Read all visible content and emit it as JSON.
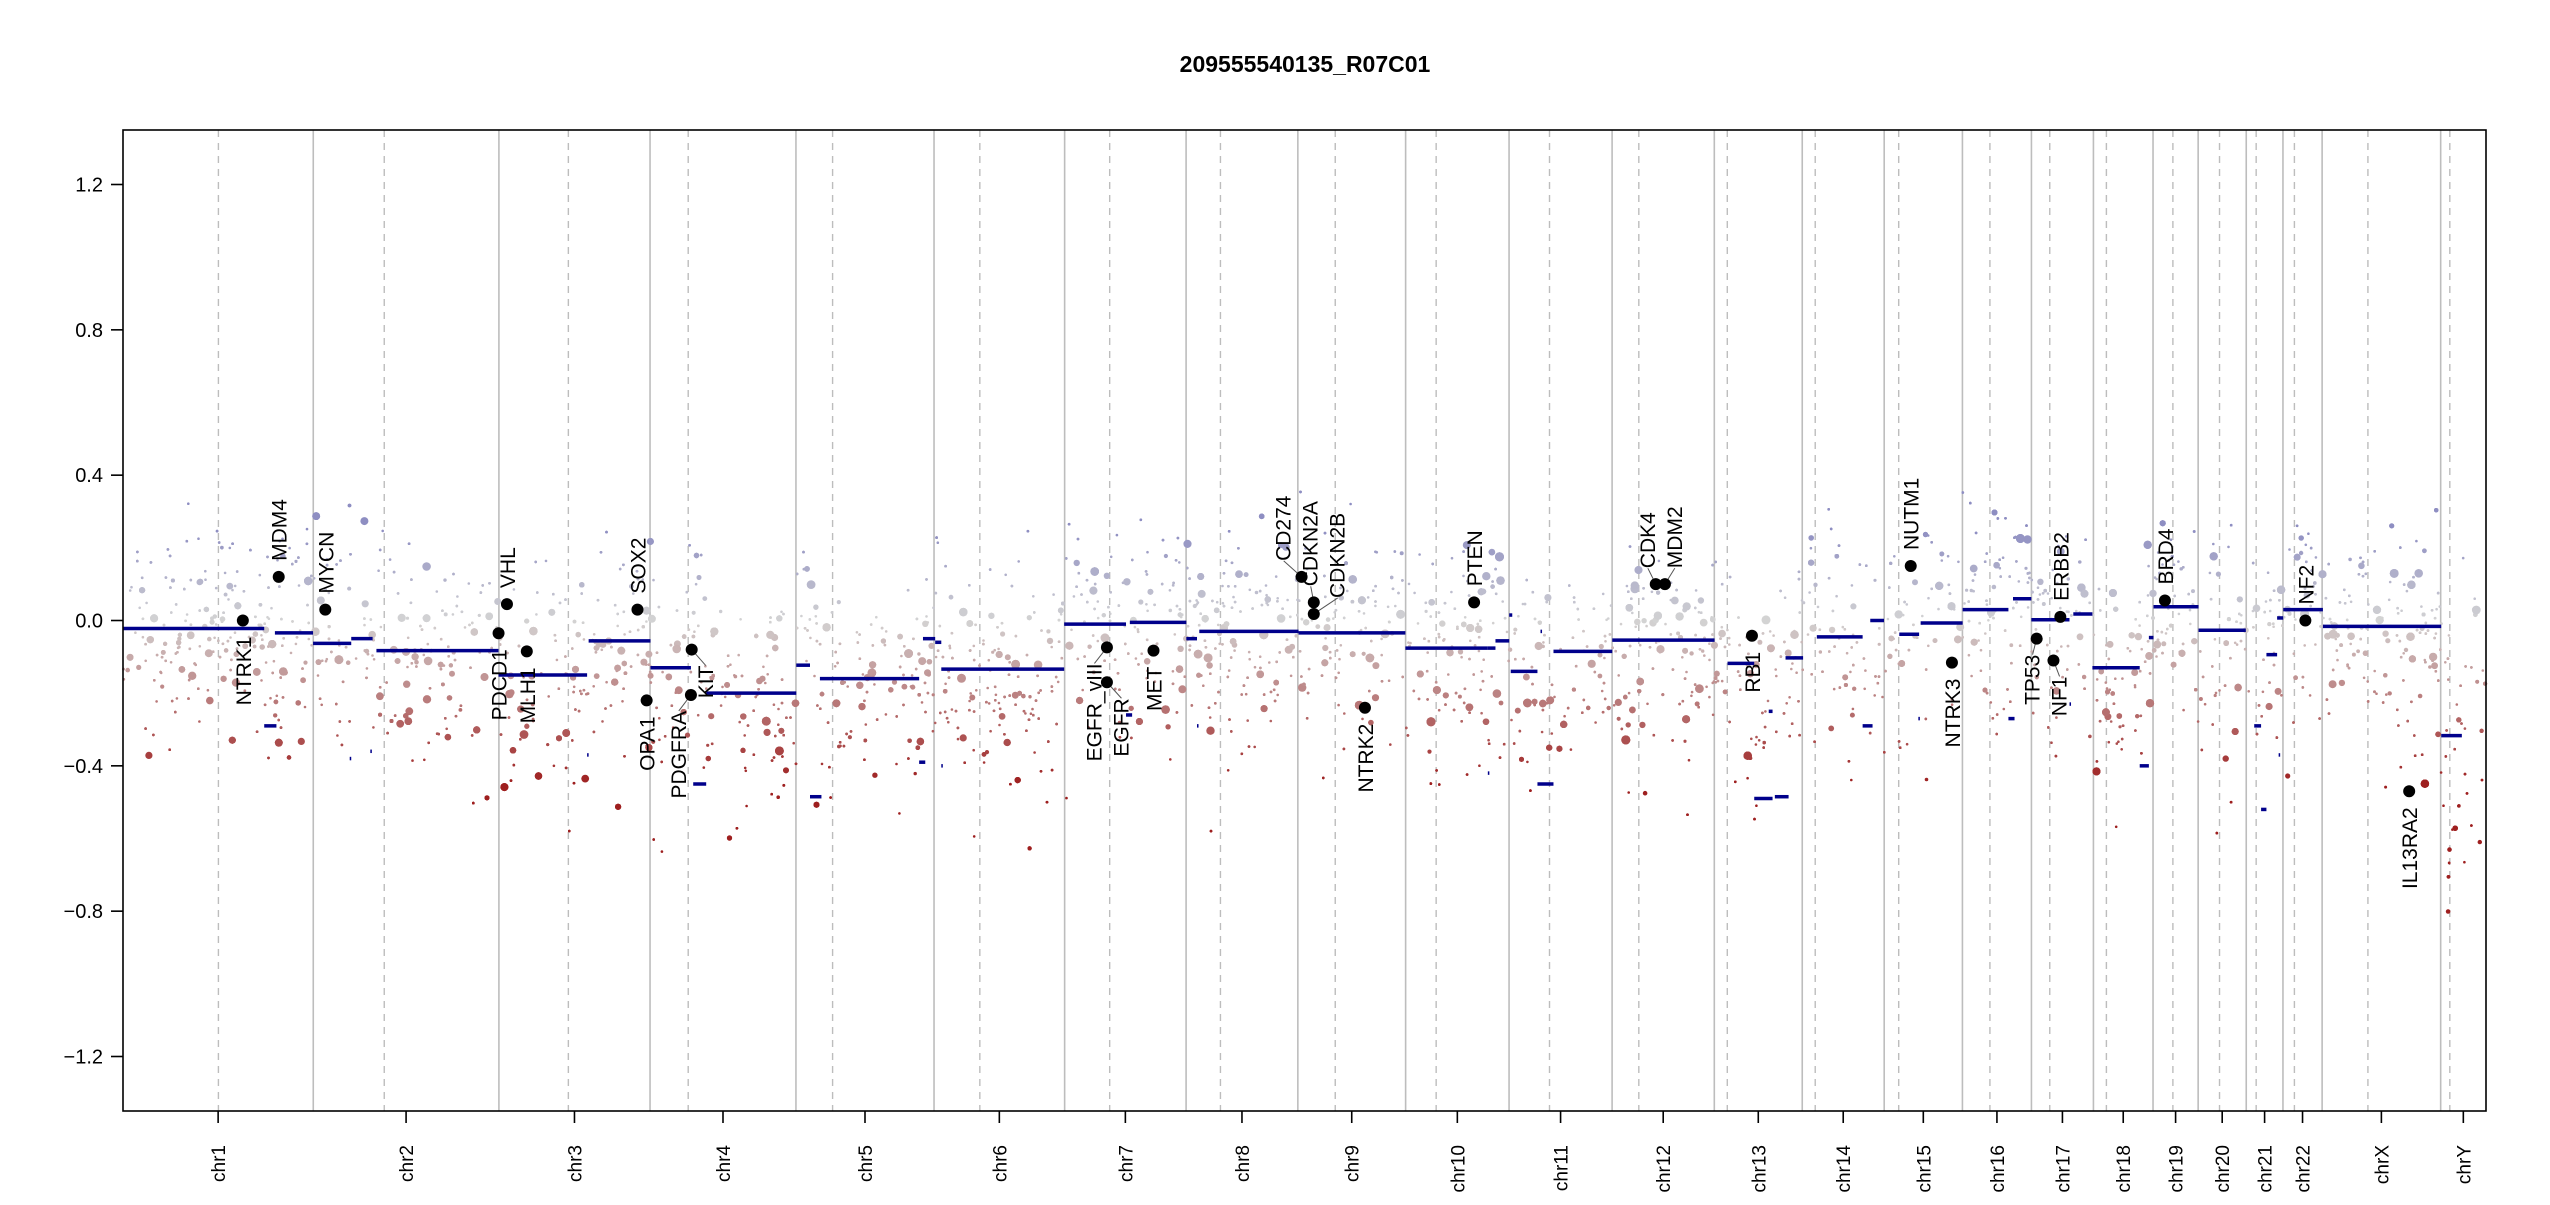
{
  "chart_data": {
    "type": "scatter",
    "title": "209555540135_R07C01",
    "xlabel": "",
    "ylabel": "",
    "ylim": [
      -1.35,
      1.35
    ],
    "yticks": [
      -1.2,
      -0.8,
      -0.4,
      0.0,
      0.4,
      0.8,
      1.2
    ],
    "ytick_labels": [
      "−1.2",
      "−0.8",
      "−0.4",
      "0.0",
      "0.4",
      "0.8",
      "1.2"
    ],
    "grid": false,
    "x_units": "Mb (cumulative genome position)",
    "chromosomes": [
      {
        "name": "chr1",
        "length": 249.25,
        "centromere": 125
      },
      {
        "name": "chr2",
        "length": 243.2,
        "centromere": 93
      },
      {
        "name": "chr3",
        "length": 198.0,
        "centromere": 91
      },
      {
        "name": "chr4",
        "length": 191.15,
        "centromere": 50
      },
      {
        "name": "chr5",
        "length": 180.9,
        "centromere": 48
      },
      {
        "name": "chr6",
        "length": 171.1,
        "centromere": 60
      },
      {
        "name": "chr7",
        "length": 159.1,
        "centromere": 59
      },
      {
        "name": "chr8",
        "length": 146.4,
        "centromere": 45
      },
      {
        "name": "chr9",
        "length": 141.2,
        "centromere": 49
      },
      {
        "name": "chr10",
        "length": 135.5,
        "centromere": 40
      },
      {
        "name": "chr11",
        "length": 135.0,
        "centromere": 53
      },
      {
        "name": "chr12",
        "length": 133.9,
        "centromere": 35
      },
      {
        "name": "chr13",
        "length": 115.2,
        "centromere": 17
      },
      {
        "name": "chr14",
        "length": 107.35,
        "centromere": 17
      },
      {
        "name": "chr15",
        "length": 102.5,
        "centromere": 19
      },
      {
        "name": "chr16",
        "length": 90.4,
        "centromere": 36
      },
      {
        "name": "chr17",
        "length": 81.2,
        "centromere": 24
      },
      {
        "name": "chr18",
        "length": 78.1,
        "centromere": 17
      },
      {
        "name": "chr19",
        "length": 59.1,
        "centromere": 26
      },
      {
        "name": "chr20",
        "length": 63.0,
        "centromere": 28
      },
      {
        "name": "chr21",
        "length": 48.1,
        "centromere": 13
      },
      {
        "name": "chr22",
        "length": 51.3,
        "centromere": 15
      },
      {
        "name": "chrX",
        "length": 155.3,
        "centromere": 60
      },
      {
        "name": "chrY",
        "length": 59.4,
        "centromere": 12
      }
    ],
    "segments": [
      [
        0,
        185,
        -0.022
      ],
      [
        185,
        201,
        -0.29
      ],
      [
        199,
        249,
        -0.034
      ],
      [
        249,
        299,
        -0.063
      ],
      [
        299,
        327,
        -0.05
      ],
      [
        297,
        299,
        -0.38
      ],
      [
        324,
        326,
        -0.36
      ],
      [
        332,
        492,
        -0.083
      ],
      [
        492,
        608,
        -0.15
      ],
      [
        608,
        610,
        -0.37
      ],
      [
        610,
        691,
        -0.056
      ],
      [
        691,
        744,
        -0.13
      ],
      [
        747,
        764,
        -0.45
      ],
      [
        764,
        882,
        -0.2
      ],
      [
        882,
        900,
        -0.123
      ],
      [
        900,
        915,
        -0.485
      ],
      [
        913,
        1043,
        -0.16
      ],
      [
        1043,
        1051,
        -0.39
      ],
      [
        1048,
        1064,
        -0.05
      ],
      [
        1064,
        1072,
        -0.06
      ],
      [
        1072,
        1074,
        -0.4
      ],
      [
        1072,
        1233,
        -0.134
      ],
      [
        1233,
        1314,
        -0.01
      ],
      [
        1314,
        1322,
        -0.26
      ],
      [
        1319,
        1393,
        -0.005
      ],
      [
        1393,
        1407,
        -0.05
      ],
      [
        1407,
        1409,
        -0.29
      ],
      [
        1410,
        1540,
        -0.03
      ],
      [
        1540,
        1680,
        -0.034
      ],
      [
        1680,
        1788,
        -0.076
      ],
      [
        1788,
        1798,
        -0.076
      ],
      [
        1788,
        1790,
        -0.42
      ],
      [
        1798,
        1816,
        -0.056
      ],
      [
        1816,
        1820,
        0.015
      ],
      [
        1818,
        1853,
        -0.14
      ],
      [
        1857,
        1859,
        -0.03
      ],
      [
        1853,
        1874,
        -0.45
      ],
      [
        1874,
        1951,
        -0.085
      ],
      [
        1951,
        2085,
        -0.054
      ],
      [
        2102,
        2137,
        -0.118
      ],
      [
        2137,
        2161,
        -0.49
      ],
      [
        2156,
        2161,
        -0.25
      ],
      [
        2164,
        2182,
        -0.485
      ],
      [
        2178,
        2201,
        -0.103
      ],
      [
        2219,
        2279,
        -0.045
      ],
      [
        2279,
        2292,
        -0.29
      ],
      [
        2289,
        2307,
        0.0
      ],
      [
        2327,
        2353,
        -0.038
      ],
      [
        2352,
        2354,
        -0.27
      ],
      [
        2355,
        2410,
        -0.007
      ],
      [
        2410,
        2470,
        0.03
      ],
      [
        2470,
        2478,
        -0.27
      ],
      [
        2476,
        2500,
        0.06
      ],
      [
        2500,
        2550,
        0.002
      ],
      [
        2550,
        2552,
        -0.23
      ],
      [
        2555,
        2580,
        0.018
      ],
      [
        2580,
        2642,
        -0.13
      ],
      [
        2642,
        2654,
        -0.4
      ],
      [
        2654,
        2660,
        -0.047
      ],
      [
        2660,
        2719,
        0.038
      ],
      [
        2719,
        2781,
        -0.027
      ],
      [
        2792,
        2801,
        -0.29
      ],
      [
        2801,
        2808,
        -0.52
      ],
      [
        2808,
        2822,
        -0.094
      ],
      [
        2824,
        2826,
        -0.37
      ],
      [
        2822,
        2830,
        0.007
      ],
      [
        2830,
        2882,
        0.03
      ],
      [
        2882,
        3037,
        -0.016
      ],
      [
        3037,
        3064,
        -0.317
      ]
    ],
    "genes": [
      {
        "name": "NTRK1",
        "pos": 157,
        "value": 0.0,
        "label": "below"
      },
      {
        "name": "MDM4",
        "pos": 204,
        "value": 0.12,
        "label": "above"
      },
      {
        "name": "MYCN",
        "pos": 265,
        "value": 0.03,
        "label": "above"
      },
      {
        "name": "PDCD1",
        "pos": 492,
        "value": -0.035,
        "label": "below"
      },
      {
        "name": "VHL",
        "pos": 503,
        "value": 0.045,
        "label": "above"
      },
      {
        "name": "MLH1",
        "pos": 529,
        "value": -0.085,
        "label": "below"
      },
      {
        "name": "SOX2",
        "pos": 674,
        "value": 0.03,
        "label": "above"
      },
      {
        "name": "OPA1",
        "pos": 686,
        "value": -0.22,
        "label": "below"
      },
      {
        "name": "PDGFRA",
        "pos": 744,
        "value": -0.205,
        "label": "below"
      },
      {
        "name": "KIT",
        "pos": 745,
        "value": -0.08,
        "label": "below"
      },
      {
        "name": "EGFR_vIII",
        "pos": 1289,
        "value": -0.074,
        "label": "below"
      },
      {
        "name": "EGFR",
        "pos": 1289,
        "value": -0.17,
        "label": "below"
      },
      {
        "name": "MET",
        "pos": 1350,
        "value": -0.083,
        "label": "below"
      },
      {
        "name": "CD274",
        "pos": 1544,
        "value": 0.12,
        "label": "above"
      },
      {
        "name": "CDKN2A",
        "pos": 1560,
        "value": 0.05,
        "label": "above"
      },
      {
        "name": "CDKN2B",
        "pos": 1560,
        "value": 0.018,
        "label": "above"
      },
      {
        "name": "NTRK2",
        "pos": 1627,
        "value": -0.24,
        "label": "below"
      },
      {
        "name": "PTEN",
        "pos": 1770,
        "value": 0.05,
        "label": "above"
      },
      {
        "name": "CDK4",
        "pos": 2008,
        "value": 0.1,
        "label": "above"
      },
      {
        "name": "MDM2",
        "pos": 2020,
        "value": 0.1,
        "label": "above"
      },
      {
        "name": "RB1",
        "pos": 2134,
        "value": -0.042,
        "label": "below"
      },
      {
        "name": "NUTM1",
        "pos": 2342,
        "value": 0.15,
        "label": "above"
      },
      {
        "name": "NTRK3",
        "pos": 2396,
        "value": -0.116,
        "label": "below"
      },
      {
        "name": "TP53",
        "pos": 2507,
        "value": -0.05,
        "label": "below"
      },
      {
        "name": "NF1",
        "pos": 2529,
        "value": -0.11,
        "label": "below"
      },
      {
        "name": "ERBB2",
        "pos": 2538,
        "value": 0.01,
        "label": "above"
      },
      {
        "name": "BRD4",
        "pos": 2675,
        "value": 0.055,
        "label": "above"
      },
      {
        "name": "NF2",
        "pos": 2859,
        "value": 0.0,
        "label": "above"
      },
      {
        "name": "IL13RA2",
        "pos": 2995,
        "value": -0.47,
        "label": "below"
      }
    ],
    "colors": {
      "segment": "#00008b",
      "gain": "#8e8ec2",
      "neutral": "#d3d3d3",
      "loss": "#9e1f1f",
      "gene_dot": "#000000",
      "frame": "#000000",
      "boundary": "#bdbdbd"
    }
  }
}
